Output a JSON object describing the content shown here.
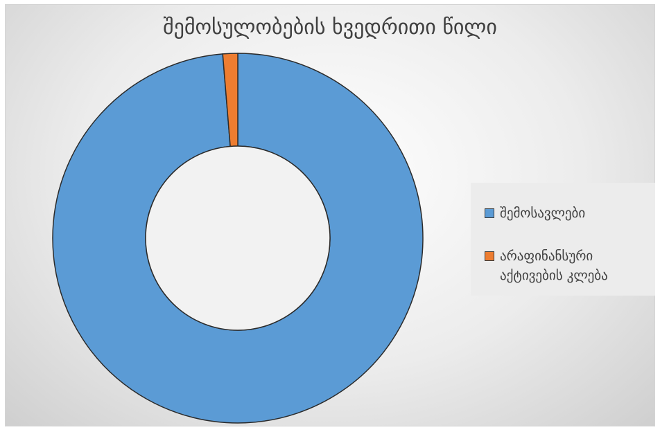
{
  "chart_data": {
    "type": "donut",
    "title": "შემოსულობების ხვედრითი წილი",
    "categories": [
      "შემოსავლები",
      "არაფინანსური აქტივების კლება"
    ],
    "values": [
      98.7,
      1.3
    ],
    "colors": [
      "#5b9bd5",
      "#ed7d31"
    ],
    "legend_position": "right"
  }
}
